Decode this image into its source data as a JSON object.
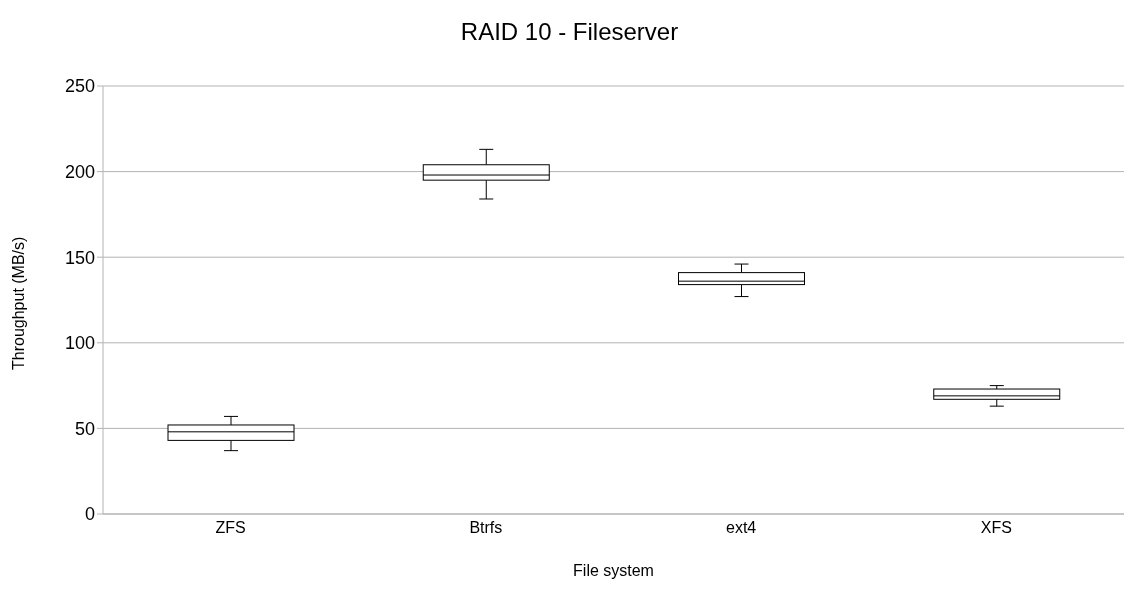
{
  "chart_data": {
    "type": "box",
    "title": "RAID 10 - Fileserver",
    "xlabel": "File system",
    "ylabel": "Throughput (MB/s)",
    "categories": [
      "ZFS",
      "Btrfs",
      "ext4",
      "XFS"
    ],
    "boxes": [
      {
        "low": 37,
        "q1": 43,
        "median": 48,
        "q3": 52,
        "high": 57
      },
      {
        "low": 184,
        "q1": 195,
        "median": 198,
        "q3": 204,
        "high": 213
      },
      {
        "low": 127,
        "q1": 134,
        "median": 136,
        "q3": 141,
        "high": 146
      },
      {
        "low": 63,
        "q1": 67,
        "median": 69,
        "q3": 73,
        "high": 75
      }
    ],
    "color": "#000000",
    "ylim": [
      0,
      250
    ],
    "yticks": [
      0,
      50,
      100,
      150,
      200,
      250
    ],
    "grid": "y",
    "legend": false
  }
}
